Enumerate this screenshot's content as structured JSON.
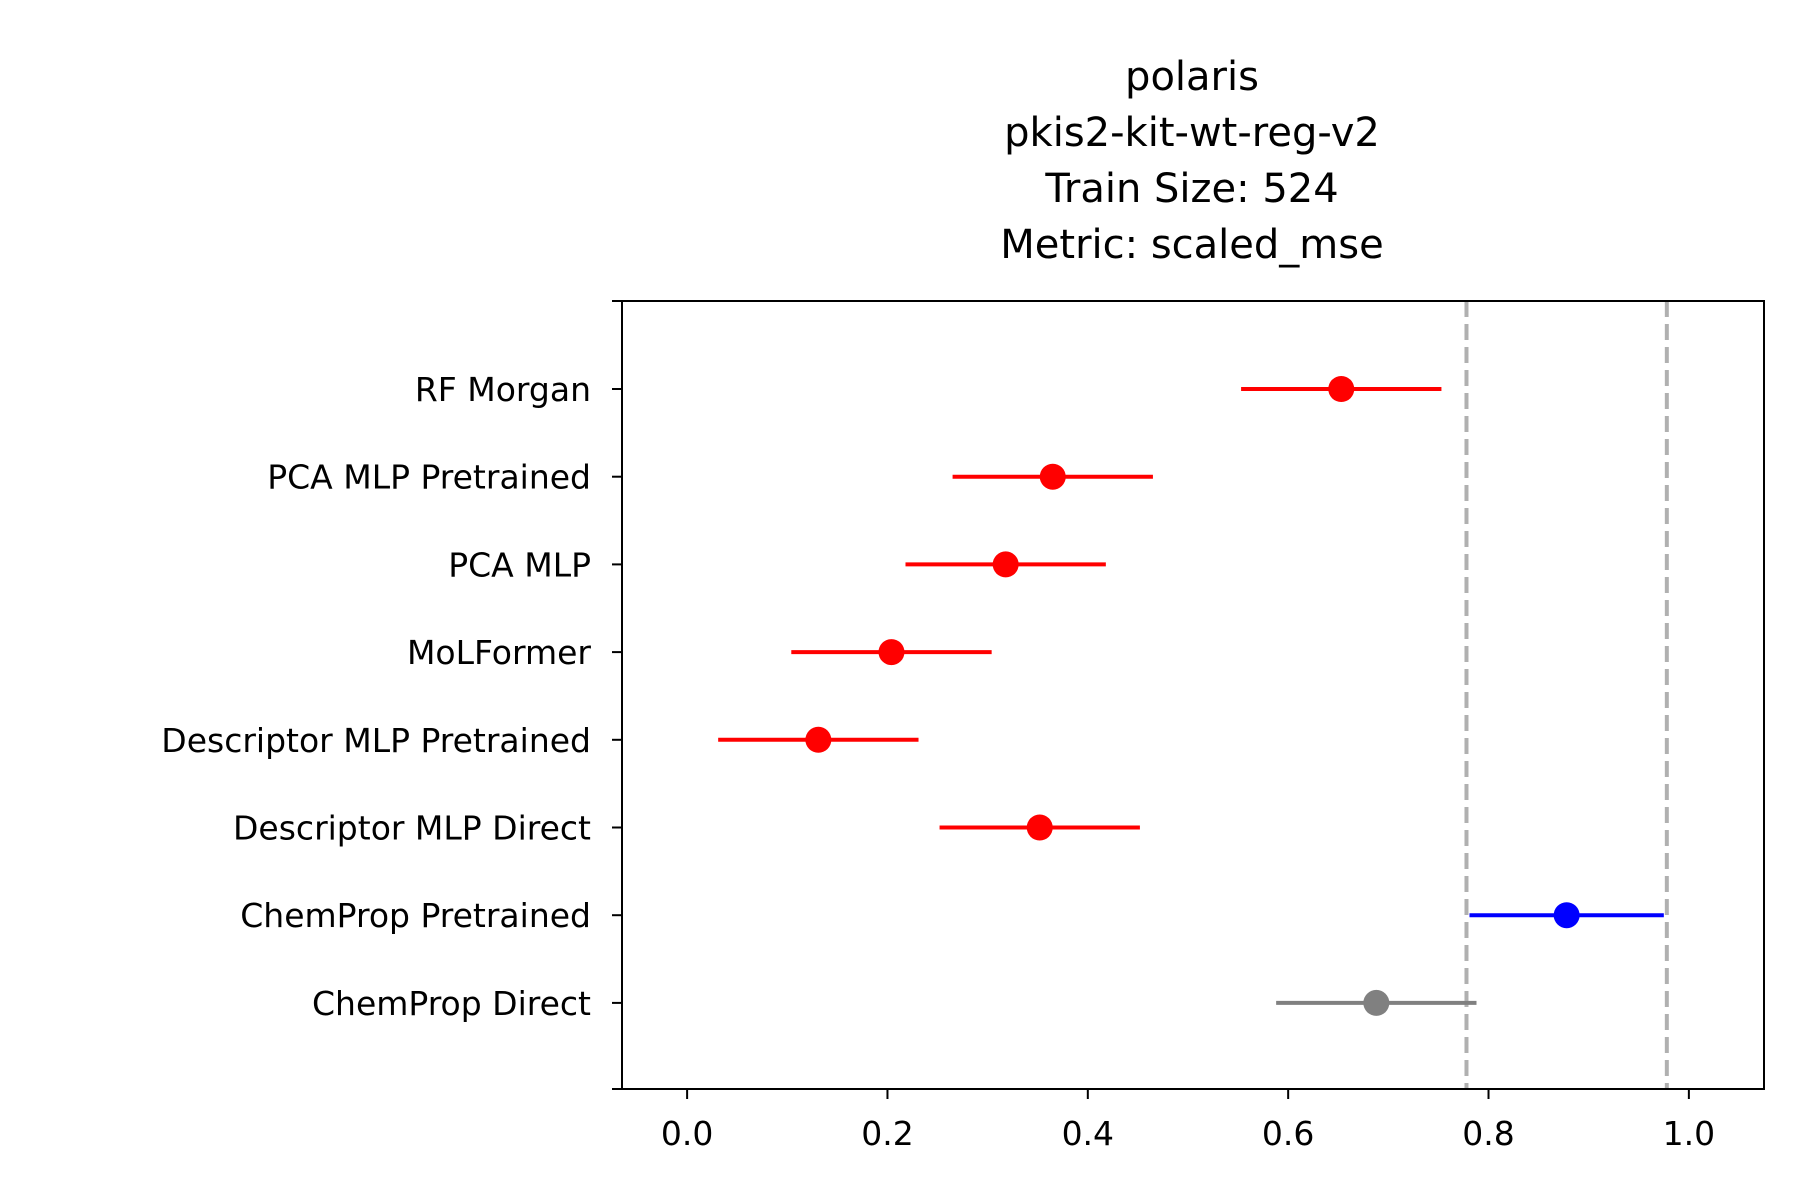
{
  "chart_data": {
    "type": "scatter",
    "title": [
      "polaris",
      "pkis2-kit-wt-reg-v2",
      "Train Size: 524",
      "Metric: scaled_mse"
    ],
    "xlabel": "",
    "ylabel": "",
    "xlim": [
      -0.065,
      1.075
    ],
    "xticks": [
      "0.0",
      "0.2",
      "0.4",
      "0.6",
      "0.8",
      "1.0"
    ],
    "grid": false,
    "reference_lines_x": [
      0.778,
      0.978
    ],
    "reference_line_color": "#b0b0b0",
    "categories": [
      "RF Morgan",
      "PCA MLP Pretrained",
      "PCA MLP",
      "MoLFormer",
      "Descriptor MLP Pretrained",
      "Descriptor MLP Direct",
      "ChemProp Pretrained",
      "ChemProp Direct"
    ],
    "points": [
      {
        "value": 0.653,
        "low": 0.553,
        "high": 0.753,
        "color": "#ff0000"
      },
      {
        "value": 0.365,
        "low": 0.265,
        "high": 0.465,
        "color": "#ff0000"
      },
      {
        "value": 0.318,
        "low": 0.218,
        "high": 0.418,
        "color": "#ff0000"
      },
      {
        "value": 0.204,
        "low": 0.104,
        "high": 0.304,
        "color": "#ff0000"
      },
      {
        "value": 0.131,
        "low": 0.031,
        "high": 0.231,
        "color": "#ff0000"
      },
      {
        "value": 0.352,
        "low": 0.252,
        "high": 0.452,
        "color": "#ff0000"
      },
      {
        "value": 0.878,
        "low": 0.781,
        "high": 0.975,
        "color": "#0000ff"
      },
      {
        "value": 0.688,
        "low": 0.588,
        "high": 0.788,
        "color": "#808080"
      }
    ]
  }
}
